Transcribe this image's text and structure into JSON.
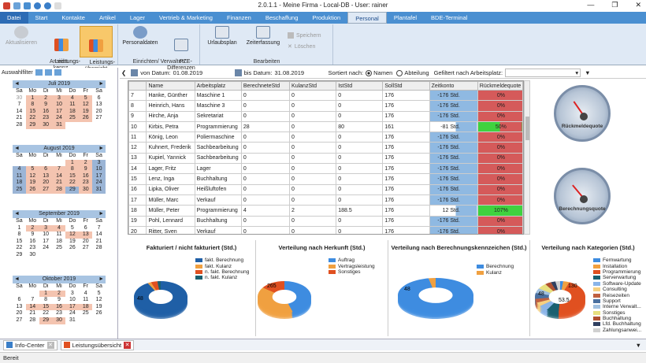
{
  "window": {
    "title": "2.0.1.1 - Meine Firma - Local-DB - User: rainer"
  },
  "tabs": [
    {
      "label": "Datei"
    },
    {
      "label": "Start"
    },
    {
      "label": "Kontakte"
    },
    {
      "label": "Artikel"
    },
    {
      "label": "Lager"
    },
    {
      "label": "Vertrieb & Marketing"
    },
    {
      "label": "Finanzen"
    },
    {
      "label": "Beschaffung"
    },
    {
      "label": "Produktion"
    },
    {
      "label": "Personal"
    },
    {
      "label": "Plantafel"
    },
    {
      "label": "BDE-Terminal"
    }
  ],
  "ribbon": {
    "ansicht": {
      "label": "Ansicht",
      "aktualisieren": "Aktualisieren",
      "kennz": "Leistungs-\nkennz.",
      "uebersicht": "Leistungs-\nübersicht"
    },
    "einrichten": {
      "label": "Einrichten/ Verwalten",
      "personaldaten": "Personaldaten",
      "pze": "PZE-\nDifferenzen"
    },
    "bearbeiten": {
      "label": "Bearbeiten",
      "urlaubsplan": "Urlaubsplan",
      "zeiterfassung": "Zeiterfassung",
      "speichern": "Speichern",
      "loeschen": "Löschen"
    }
  },
  "leftpanel": {
    "title": "Auswahlfilter"
  },
  "calendar": {
    "days": [
      "Sa",
      "Mo",
      "Di",
      "Mi",
      "Do",
      "Fr",
      "Sa"
    ],
    "months": [
      {
        "name": "Juli 2019",
        "rows": [
          [
            "30",
            "1",
            "2",
            "3",
            "4",
            "5",
            "6"
          ],
          [
            "7",
            "8",
            "9",
            "10",
            "11",
            "12",
            "13"
          ],
          [
            "14",
            "15",
            "16",
            "17",
            "18",
            "19",
            "20"
          ],
          [
            "21",
            "22",
            "23",
            "24",
            "25",
            "26",
            "27"
          ],
          [
            "28",
            "29",
            "30",
            "31",
            "",
            "",
            ""
          ]
        ]
      },
      {
        "name": "August 2019",
        "rows": [
          [
            "",
            "",
            "",
            "",
            "1",
            "2",
            "3"
          ],
          [
            "4",
            "5",
            "6",
            "7",
            "8",
            "9",
            "10"
          ],
          [
            "11",
            "12",
            "13",
            "14",
            "15",
            "16",
            "17"
          ],
          [
            "18",
            "19",
            "20",
            "21",
            "22",
            "23",
            "24"
          ],
          [
            "25",
            "26",
            "27",
            "28",
            "29",
            "30",
            "31"
          ]
        ]
      },
      {
        "name": "September 2019",
        "rows": [
          [
            "1",
            "2",
            "3",
            "4",
            "5",
            "6",
            "7"
          ],
          [
            "8",
            "9",
            "10",
            "11",
            "12",
            "13",
            "14"
          ],
          [
            "15",
            "16",
            "17",
            "18",
            "19",
            "20",
            "21"
          ],
          [
            "22",
            "23",
            "24",
            "25",
            "26",
            "27",
            "28"
          ],
          [
            "29",
            "30",
            "",
            "",
            "",
            "",
            ""
          ]
        ]
      },
      {
        "name": "Oktober 2019",
        "rows": [
          [
            "",
            "",
            "1",
            "2",
            "3",
            "4",
            "5"
          ],
          [
            "6",
            "7",
            "8",
            "9",
            "10",
            "11",
            "12"
          ],
          [
            "13",
            "14",
            "15",
            "16",
            "17",
            "18",
            "19"
          ],
          [
            "20",
            "21",
            "22",
            "23",
            "24",
            "25",
            "26"
          ],
          [
            "27",
            "28",
            "29",
            "30",
            "31",
            "",
            ""
          ]
        ]
      }
    ]
  },
  "filter": {
    "von_label": "von Datum:",
    "von_value": "01.08.2019",
    "bis_label": "bis Datum:",
    "bis_value": "31.08.2019",
    "sort_label": "Sortiert nach:",
    "opt_namen": "Namen",
    "opt_abteilung": "Abteilung",
    "gefiltert": "Gefiltert nach Arbeitsplatz:"
  },
  "table": {
    "headers": [
      "",
      "Name",
      "Arbeitsplatz",
      "BerechneteStd",
      "KulanzStd",
      "IstStd",
      "SollStd",
      "Zeitkonto",
      "Rückmeldequote"
    ],
    "rows": [
      [
        "7",
        "Hanke, Günther",
        "Maschine 1",
        "0",
        "0",
        "0",
        "176",
        "-176 Std.",
        "0%"
      ],
      [
        "8",
        "Heinrich, Hans",
        "Maschine 3",
        "0",
        "0",
        "0",
        "176",
        "-176 Std.",
        "0%"
      ],
      [
        "9",
        "Hirche, Anja",
        "Sekretariat",
        "0",
        "0",
        "0",
        "176",
        "-176 Std.",
        "0%"
      ],
      [
        "10",
        "Kirbis, Petra",
        "Programmierung",
        "28",
        "0",
        "80",
        "161",
        "-81 Std.",
        "50%"
      ],
      [
        "11",
        "König, Leon",
        "Poliermaschine",
        "0",
        "0",
        "0",
        "176",
        "-176 Std.",
        "0%"
      ],
      [
        "12",
        "Kuhnert, Frederik",
        "Sachbearbeitung",
        "0",
        "0",
        "0",
        "176",
        "-176 Std.",
        "0%"
      ],
      [
        "13",
        "Kupiel, Yannick",
        "Sachbearbeitung",
        "0",
        "0",
        "0",
        "176",
        "-176 Std.",
        "0%"
      ],
      [
        "14",
        "Lager, Fritz",
        "Lager",
        "0",
        "0",
        "0",
        "176",
        "-176 Std.",
        "0%"
      ],
      [
        "15",
        "Lenz, Inga",
        "Buchhaltung",
        "0",
        "0",
        "0",
        "176",
        "-176 Std.",
        "0%"
      ],
      [
        "16",
        "Lipka, Oliver",
        "Heißluftofen",
        "0",
        "0",
        "0",
        "176",
        "-176 Std.",
        "0%"
      ],
      [
        "17",
        "Müller, Marc",
        "Verkauf",
        "0",
        "0",
        "0",
        "176",
        "-176 Std.",
        "0%"
      ],
      [
        "18",
        "Müller, Peter",
        "Programmierung",
        "4",
        "2",
        "188.5",
        "176",
        "12 Std.",
        "107%"
      ],
      [
        "19",
        "Pohl, Lennard",
        "Buchhaltung",
        "0",
        "0",
        "0",
        "176",
        "-176 Std.",
        "0%"
      ],
      [
        "20",
        "Ritter, Sven",
        "Verkauf",
        "0",
        "0",
        "0",
        "176",
        "-176 Std.",
        "0%"
      ]
    ]
  },
  "gauges": [
    {
      "label": "Rückmeldequote"
    },
    {
      "label": "Berechnungsquote"
    }
  ],
  "charts": {
    "c1": {
      "title": "Fakturiert / nicht fakturiert (Std.)",
      "legend": [
        "fakt. Berechnung",
        "fakt. Kulanz",
        "n. fakt. Berechnung",
        "n. fakt. Kulanz"
      ],
      "colors": [
        "#1f5fa6",
        "#f0a040",
        "#e05020",
        "#1a6070"
      ],
      "label": "48"
    },
    "c2": {
      "title": "Verteilung nach Herkunft (Std.)",
      "legend": [
        "Auftrag",
        "Vertragsleistung",
        "Sonstiges"
      ],
      "colors": [
        "#3e8ce0",
        "#f0a040",
        "#e05020"
      ],
      "label": "265"
    },
    "c3": {
      "title": "Verteilung nach Berechnungskennzeichen (Std.)",
      "legend": [
        "Berechnung",
        "Kulanz"
      ],
      "colors": [
        "#3e8ce0",
        "#f0a040"
      ],
      "label": "48"
    },
    "c4": {
      "title": "Verteilung nach Kategorien (Std.)",
      "legend": [
        "Fernwartung",
        "Installation",
        "Programmierung",
        "Serverwartung",
        "Software-Update",
        "Consulting",
        "Reisezeiten",
        "Support",
        "Interne Verwalt...",
        "Sonstiges",
        "Buchhaltung",
        "Lfd. Buchhaltung",
        "Zahlungsanwei..."
      ],
      "colors": [
        "#3e8ce0",
        "#f0a040",
        "#e05020",
        "#1a6070",
        "#8ab4e8",
        "#f6d080",
        "#c06040",
        "#4a70a0",
        "#a0c0e0",
        "#e8e080",
        "#b05030",
        "#304060",
        "#d0d0d0"
      ],
      "labels": [
        "130",
        "53.5",
        "48"
      ]
    }
  },
  "bottomtabs": [
    {
      "label": "Info-Center"
    },
    {
      "label": "Leistungsübersicht"
    }
  ],
  "status": {
    "text": "Bereit"
  }
}
